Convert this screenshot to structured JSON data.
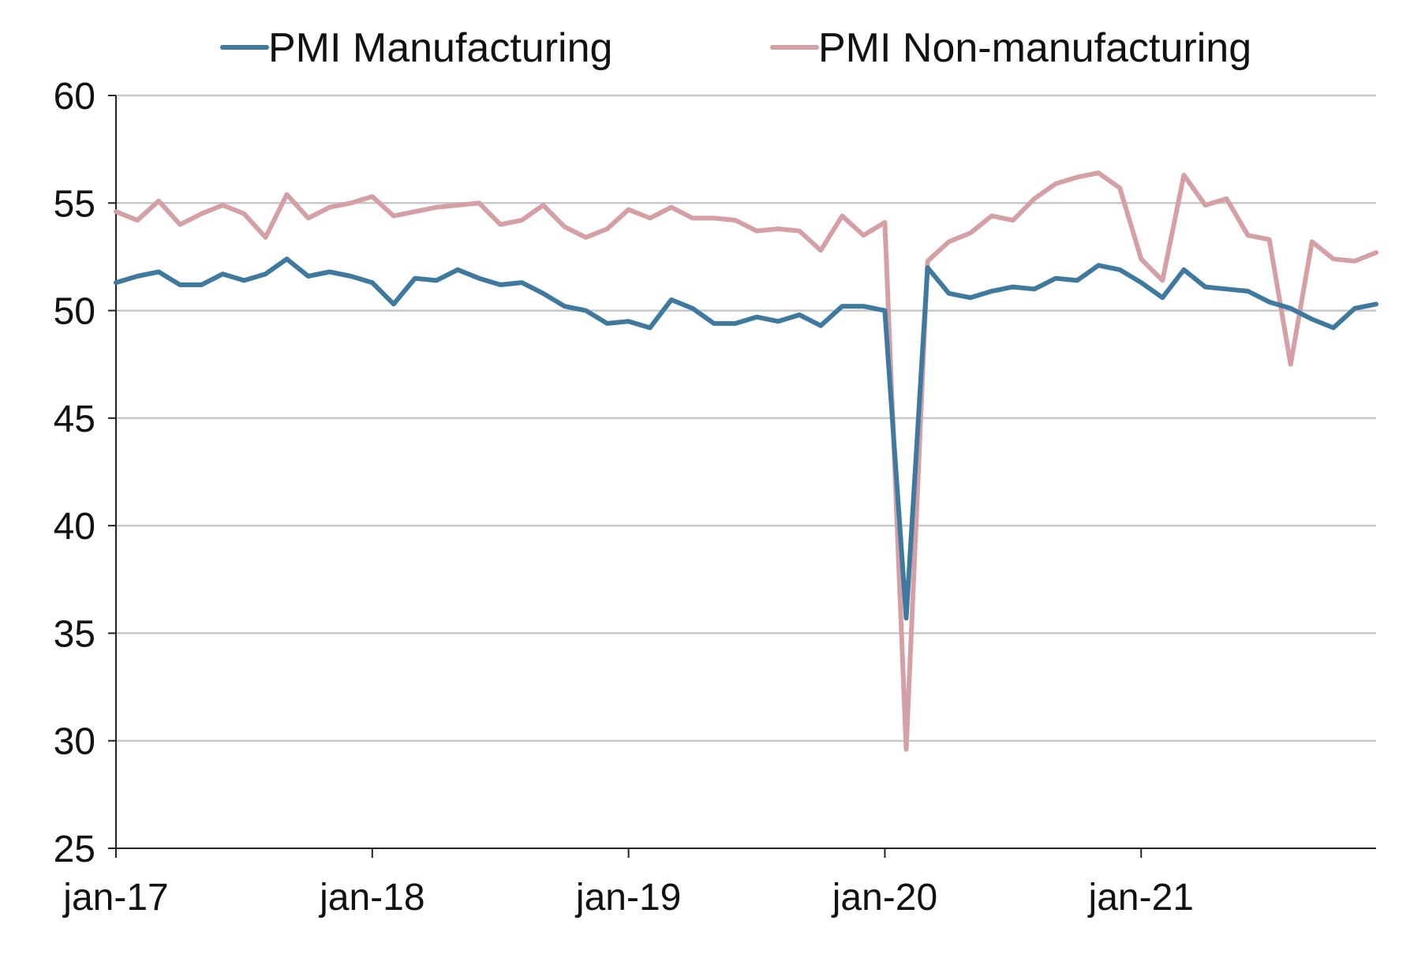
{
  "chart_data": {
    "type": "line",
    "title": "",
    "xlabel": "",
    "ylabel": "",
    "ylim": [
      25,
      60
    ],
    "yticks": [
      25,
      30,
      35,
      40,
      45,
      50,
      55,
      60
    ],
    "grid": true,
    "legend_position": "top",
    "x_start": "2017-01",
    "x_end": "2021-12",
    "x_tick_labels": [
      "jan-17",
      "jan-18",
      "jan-19",
      "jan-20",
      "jan-21"
    ],
    "series": [
      {
        "name": "PMI Manufacturing",
        "color": "#3f7a9e",
        "values": [
          51.3,
          51.6,
          51.8,
          51.2,
          51.2,
          51.7,
          51.4,
          51.7,
          52.4,
          51.6,
          51.8,
          51.6,
          51.3,
          50.3,
          51.5,
          51.4,
          51.9,
          51.5,
          51.2,
          51.3,
          50.8,
          50.2,
          50.0,
          49.4,
          49.5,
          49.2,
          50.5,
          50.1,
          49.4,
          49.4,
          49.7,
          49.5,
          49.8,
          49.3,
          50.2,
          50.2,
          50.0,
          35.7,
          52.0,
          50.8,
          50.6,
          50.9,
          51.1,
          51.0,
          51.5,
          51.4,
          52.1,
          51.9,
          51.3,
          50.6,
          51.9,
          51.1,
          51.0,
          50.9,
          50.4,
          50.1,
          49.6,
          49.2,
          50.1,
          50.3
        ]
      },
      {
        "name": "PMI Non-manufacturing",
        "color": "#d4a0a6",
        "values": [
          54.6,
          54.2,
          55.1,
          54.0,
          54.5,
          54.9,
          54.5,
          53.4,
          55.4,
          54.3,
          54.8,
          55.0,
          55.3,
          54.4,
          54.6,
          54.8,
          54.9,
          55.0,
          54.0,
          54.2,
          54.9,
          53.9,
          53.4,
          53.8,
          54.7,
          54.3,
          54.8,
          54.3,
          54.3,
          54.2,
          53.7,
          53.8,
          53.7,
          52.8,
          54.4,
          53.5,
          54.1,
          29.6,
          52.3,
          53.2,
          53.6,
          54.4,
          54.2,
          55.2,
          55.9,
          56.2,
          56.4,
          55.7,
          52.4,
          51.4,
          56.3,
          54.9,
          55.2,
          53.5,
          53.3,
          47.5,
          53.2,
          52.4,
          52.3,
          52.7
        ]
      }
    ]
  }
}
